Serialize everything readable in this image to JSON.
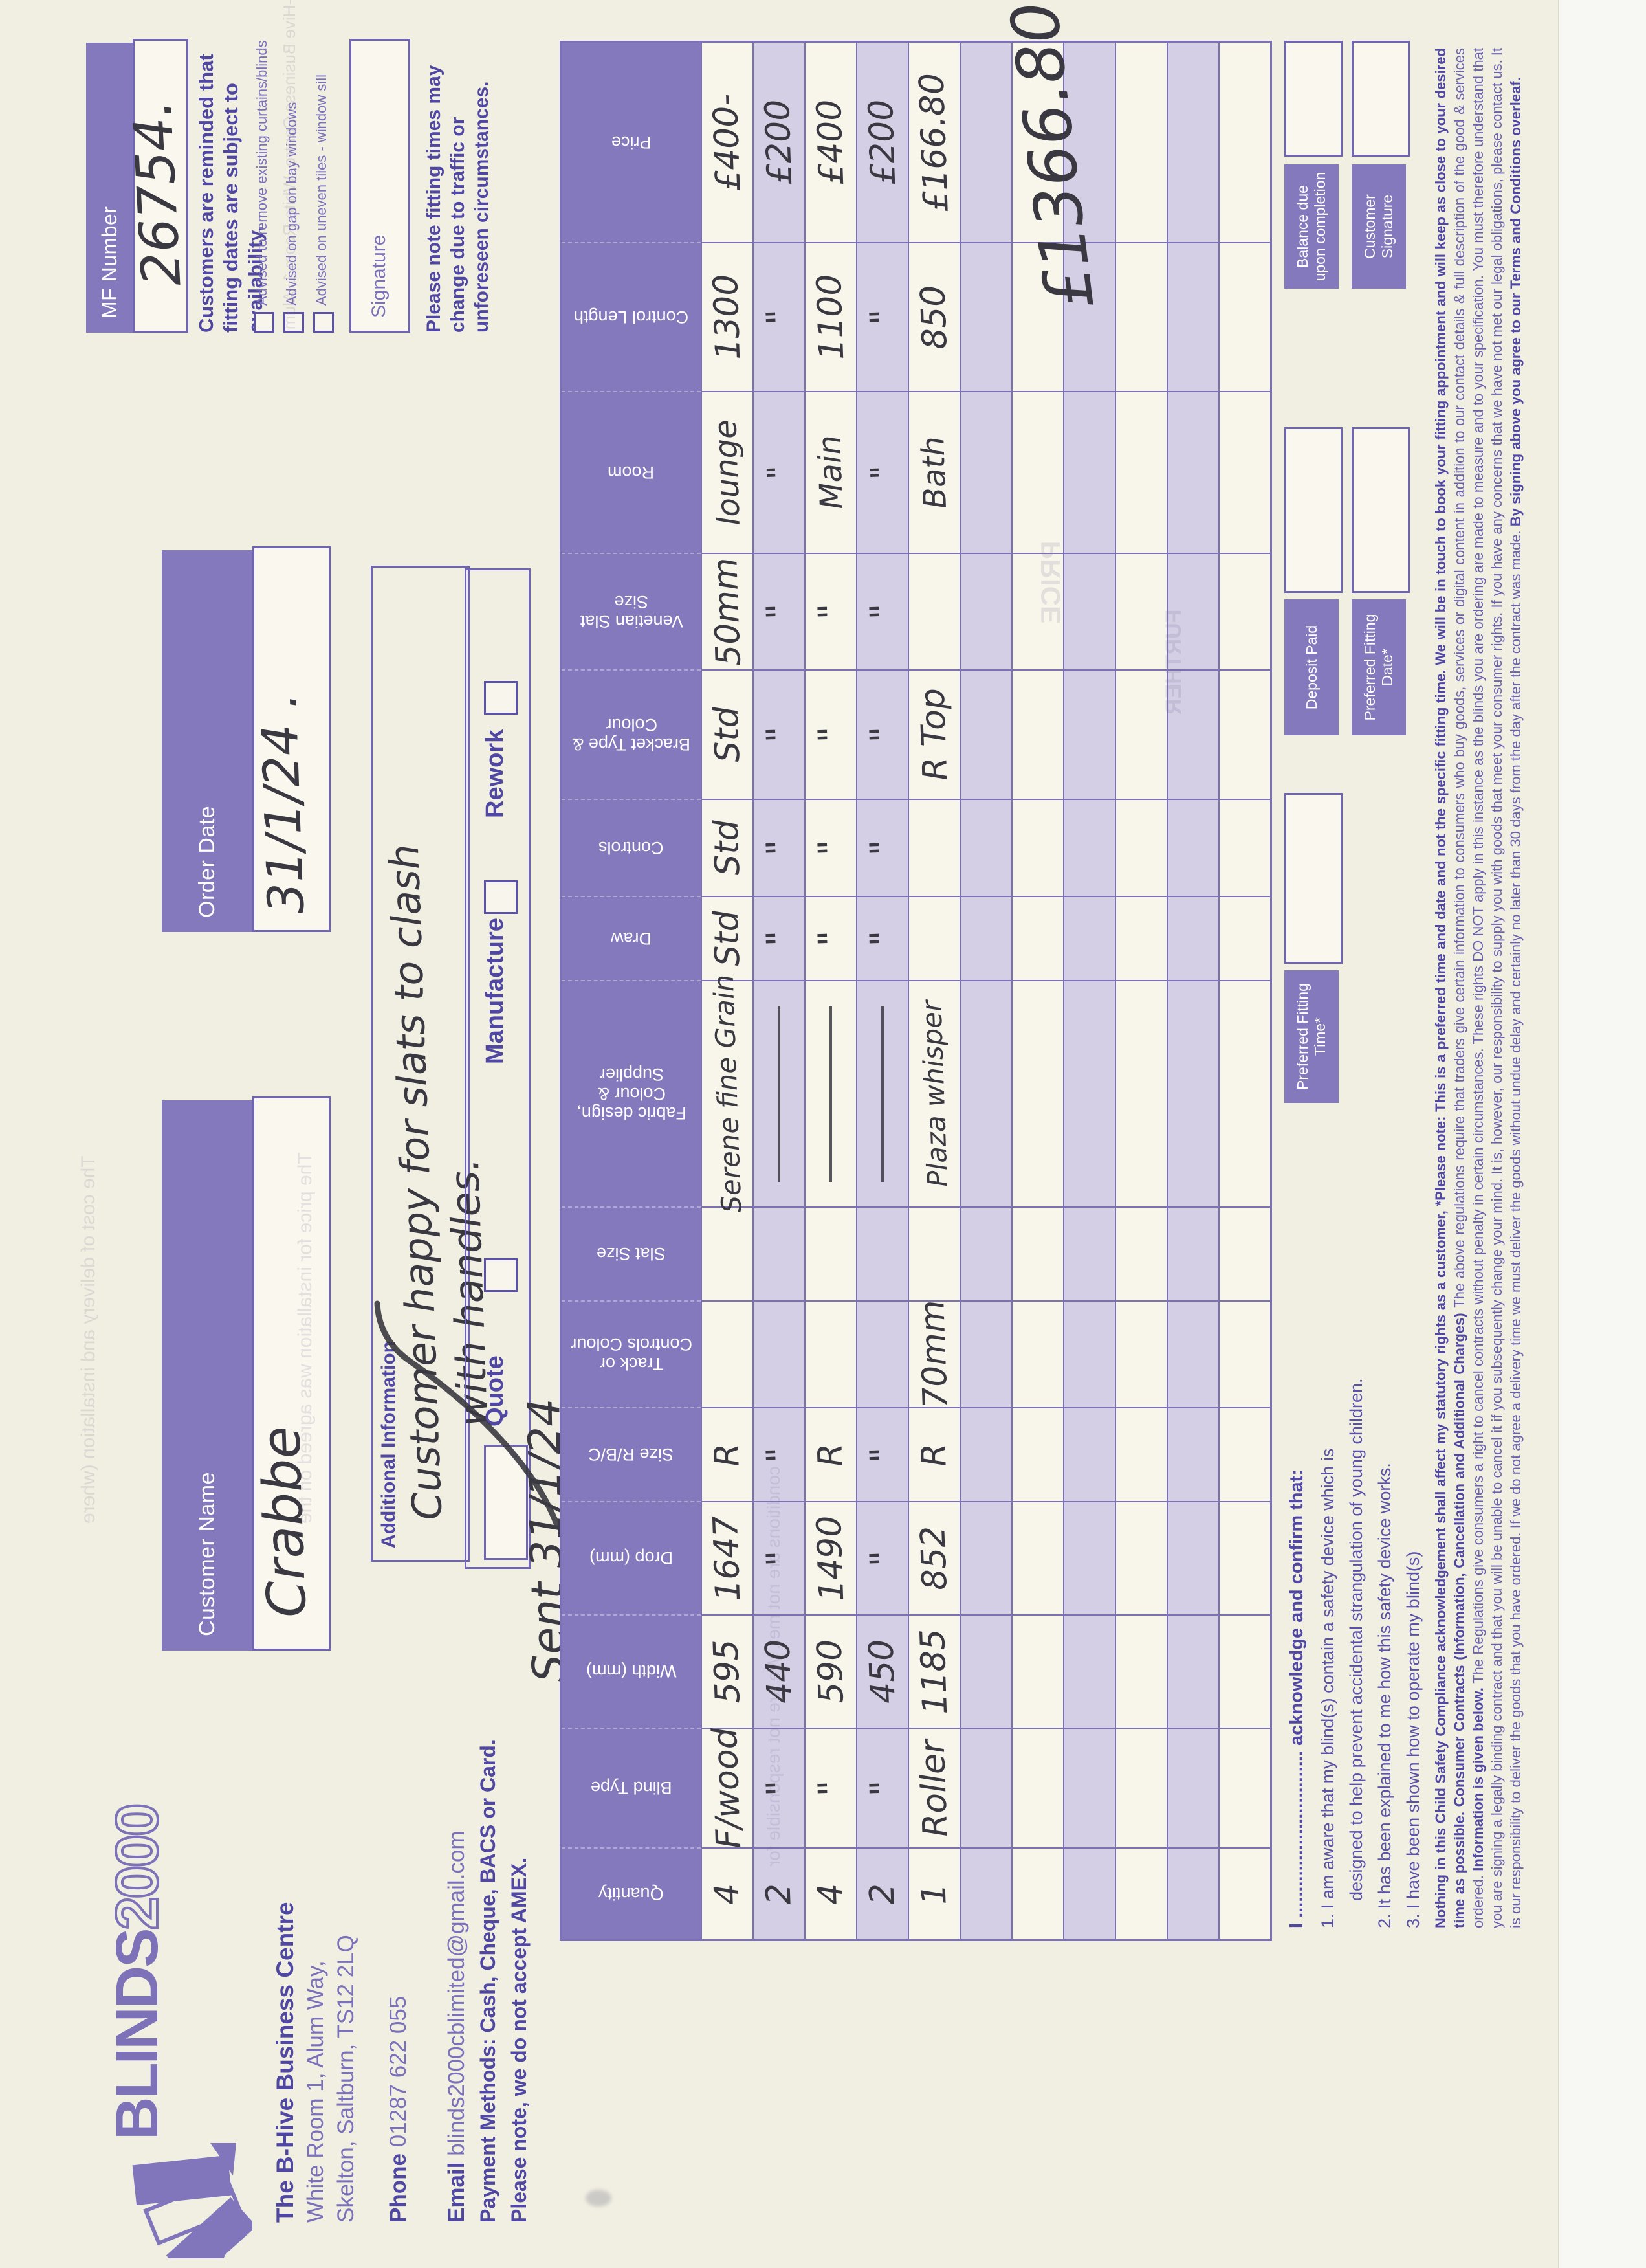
{
  "page": {
    "paper": "#f1efe2",
    "band_purple": "#8579bd",
    "accent_purple": "#4f47a2",
    "grid_purple": "#7c70b6",
    "ink": "#3a3840",
    "scan_edge": "#f7f7f3"
  },
  "brand": {
    "logo_text_solid": "BLINDS",
    "logo_text_outline": "2000",
    "line1": "The B-Hive Business Centre",
    "line2": "White Room 1, Alum Way,",
    "line3": "Skelton, Saltburn, TS12 2LQ",
    "phone_label": "Phone",
    "phone_value": "01287 622 055",
    "email_label": "Email",
    "email_value": "blinds2000cblimited@gmail.com",
    "payment_line1": "Payment Methods: Cash, Cheque, BACS or Card.",
    "payment_line2": "Please note, we do not accept AMEX."
  },
  "header_fields": {
    "customer_name": {
      "label": "Customer Name",
      "value": "Crabbe"
    },
    "order_date": {
      "label": "Order Date",
      "value": "31/1/24 ."
    },
    "mf_number": {
      "label": "MF Number",
      "value": "26754."
    },
    "additional": {
      "label": "Additional Information",
      "handwriting_line1": "Customer happy for slats to clash",
      "handwriting_line2": "with handles."
    },
    "quote_label": "Quote",
    "manufacture_label": "Manufacture",
    "rework_label": "Rework",
    "sent_note": "Sent 31/1/24"
  },
  "reminder_block": {
    "heading": "Customers are reminded that fitting dates are subject to availability.",
    "checkboxes": [
      "Advised to remove existing curtains/blinds",
      "Advised on gap on bay windows",
      "Advised on uneven tiles - window sill"
    ],
    "signature_label": "Signature",
    "note": "Please note fitting times may change due to traffic or unforeseen circumstances."
  },
  "table": {
    "columns": [
      "Quantity",
      "Blind Type",
      "Width (mm)",
      "Drop (mm)",
      "Size R/B/C",
      "Track or Controls Colour",
      "Slat Size",
      "Fabric design, Colour & Supplier",
      "Draw",
      "Controls",
      "Bracket Type & Colour",
      "Venetian Slat Size",
      "Room",
      "Control Length",
      "Price"
    ],
    "rows": [
      [
        "4",
        "F/wood",
        "595",
        "1647",
        "R",
        "",
        "",
        "Serene fine Grain",
        "Std",
        "Std",
        "Std",
        "50mm",
        "lounge",
        "1300",
        "£400-"
      ],
      [
        "2",
        "\"",
        "440",
        "\"",
        "\"",
        "",
        "",
        "—",
        "\"",
        "\"",
        "\"",
        "\"",
        "\"",
        "\"",
        "£200"
      ],
      [
        "4",
        "\"",
        "590",
        "1490",
        "R",
        "",
        "",
        "—",
        "\"",
        "\"",
        "\"",
        "\"",
        "Main",
        "1100",
        "£400"
      ],
      [
        "2",
        "\"",
        "450",
        "\"",
        "\"",
        "",
        "",
        "—",
        "\"",
        "\"",
        "\"",
        "\"",
        "\"",
        "\"",
        "£200"
      ],
      [
        "1",
        "Roller",
        "1185",
        "852",
        "R",
        "70mm",
        "",
        "Plaza whisper",
        "",
        "",
        "R Top",
        "",
        "Bath",
        "850",
        "£166.80"
      ]
    ],
    "empty_rows": 6,
    "total_handwritten": "£1366.80"
  },
  "bottom": {
    "acknowledge_lead": "I ................................ acknowledge and confirm that:",
    "acknowledge_items": [
      "1. I am aware that my blind(s) contain a safety device which is",
      "designed to help prevent accidental strangulation of young children.",
      "2. It has been explained to me how this safety device works.",
      "3. I have been shown how to operate my blind(s)"
    ],
    "boxes": {
      "preferred_time": "Preferred Fitting Time*",
      "deposit": "Deposit Paid",
      "preferred_date": "Preferred Fitting Date*",
      "balance": "Balance due upon completion",
      "customer_signature": "Customer Signature"
    },
    "terms_segments": [
      {
        "bold": true,
        "text": "Nothing in this Child Safety Compliance acknowledgement shall affect my statutory rights as a customer, "
      },
      {
        "bold": true,
        "text": "*Please note: This is a preferred time and date and not the specific fitting time. We will be in touch to book your fitting appointment and will keep as close to your desired time as possible. "
      },
      {
        "bold": true,
        "text": "Consumer Contracts (Information, Cancellation and Additional Charges) "
      },
      {
        "bold": false,
        "text": "The above regulations require that traders give certain information to consumers who buy goods, services or digital content in addition to our contact details & full description of the good & services ordered. "
      },
      {
        "bold": true,
        "text": "Information is given below. "
      },
      {
        "bold": false,
        "text": "The Regulations give consumers a right to cancel contracts without penalty in certain circumstances. These rights DO NOT apply in this instance as the blinds you are ordering are made to measure and to your specification. You must therefore understand that you are signing a legally binding contract and that you will be unable to cancel it if you subsequently change your mind. It is, however, our responsibility to supply you with goods that meet your consumer rights. If you have any concerns that we have not met our legal obligations, please contact us. It is our responsibility to deliver the goods that you have ordered. If we do not agree a delivery time we must deliver the goods without undue delay and certainly no later than 30 days from the day after the contract was made. "
      },
      {
        "bold": true,
        "text": "By signing above you agree to our Terms and Conditions overleaf."
      }
    ]
  },
  "bleedthrough": [
    "The price for installation was agreed on the",
    "The cost of delivery and installation (where",
    "conditions are not met. We are not responsible for",
    "B-Hive Business Centre, White Room 1, Alum",
    "PRICE",
    "FURTHER"
  ]
}
